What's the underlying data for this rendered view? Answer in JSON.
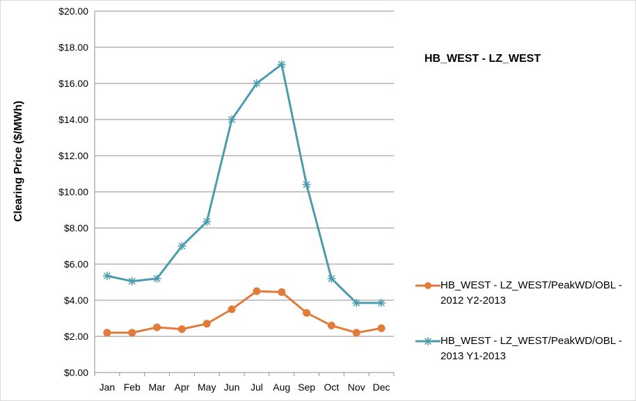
{
  "chart_data": {
    "type": "line",
    "title": "HB_WEST - LZ_WEST",
    "ylabel": "Clearing Price ($/MWh)",
    "xlabel": "",
    "categories": [
      "Jan",
      "Feb",
      "Mar",
      "Apr",
      "May",
      "Jun",
      "Jul",
      "Aug",
      "Sep",
      "Oct",
      "Nov",
      "Dec"
    ],
    "yticks": [
      "$0.00",
      "$2.00",
      "$4.00",
      "$6.00",
      "$8.00",
      "$10.00",
      "$12.00",
      "$14.00",
      "$16.00",
      "$18.00",
      "$20.00"
    ],
    "ylim": [
      0,
      20
    ],
    "grid": true,
    "legend_position": "right",
    "series": [
      {
        "name": "HB_WEST - LZ_WEST/PeakWD/OBL - 2012 Y2-2013",
        "color": "#e07b39",
        "marker": "circle",
        "values": [
          2.2,
          2.2,
          2.5,
          2.4,
          2.7,
          3.5,
          4.5,
          4.45,
          3.3,
          2.6,
          2.2,
          2.45
        ]
      },
      {
        "name": "HB_WEST - LZ_WEST/PeakWD/OBL - 2013 Y1-2013",
        "color": "#4a9bac",
        "marker": "asterisk",
        "values": [
          5.35,
          5.05,
          5.2,
          7.0,
          8.35,
          14.0,
          16.0,
          17.05,
          10.4,
          5.2,
          3.85,
          3.85
        ]
      }
    ]
  }
}
